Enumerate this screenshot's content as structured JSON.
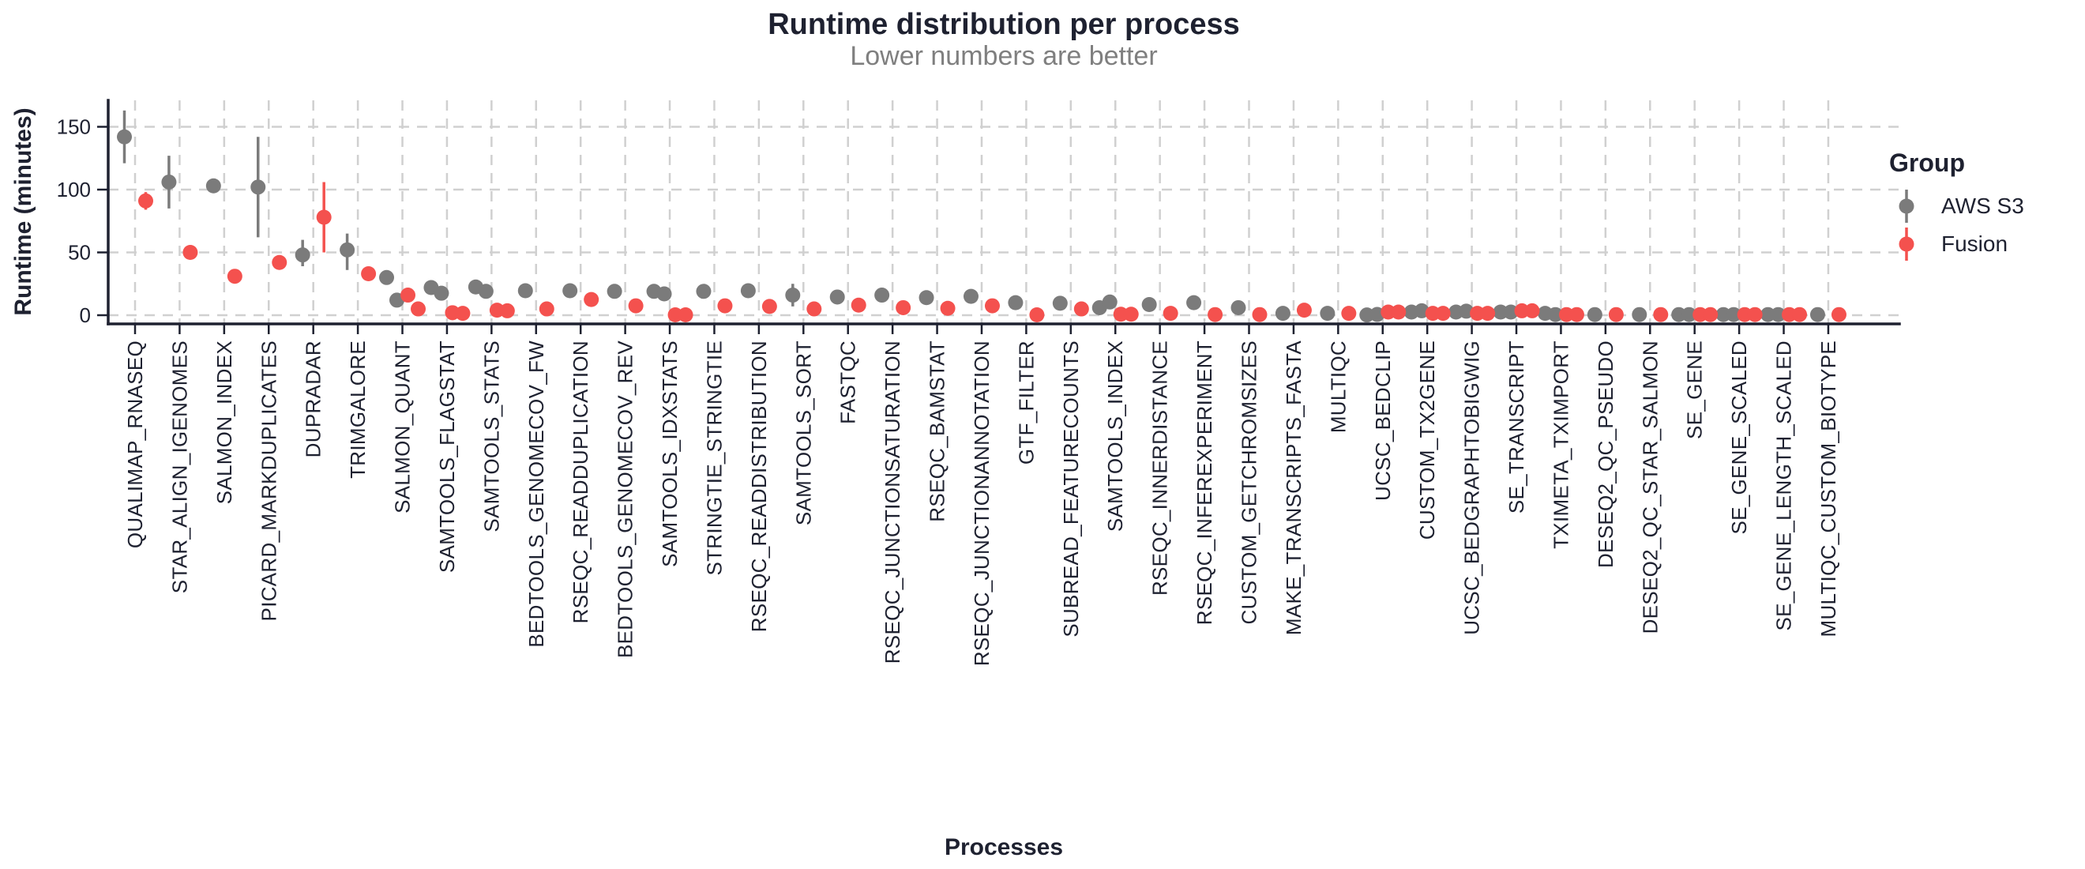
{
  "title": "Runtime distribution per process",
  "subtitle": "Lower numbers are better",
  "x_axis_title": "Processes",
  "y_axis_title": "Runtime (minutes)",
  "legend": {
    "title": "Group",
    "items": [
      {
        "label": "AWS S3",
        "color": "#7b7b7b"
      },
      {
        "label": "Fusion",
        "color": "#f4514e"
      }
    ]
  },
  "colors": {
    "aws_s3": "#7b7b7b",
    "fusion": "#f4514e",
    "axis_text": "#1e2130",
    "subtitle_gray": "#7f7f7f",
    "gridline": "#d0d0d0",
    "background": "#ffffff"
  },
  "chart_data": {
    "type": "scatter",
    "style": "dodged pointrange / jittered points per group",
    "grid": "dashed horizontal and vertical",
    "legend_position": "right",
    "y_ticks": [
      0,
      50,
      100,
      150
    ],
    "ylim": [
      -7,
      171
    ],
    "ylabel": "Runtime (minutes)",
    "xlabel": "Processes",
    "categories": [
      "QUALIMAP_RNASEQ",
      "STAR_ALIGN_IGENOMES",
      "SALMON_INDEX",
      "PICARD_MARKDUPLICATES",
      "DUPRADAR",
      "TRIMGALORE",
      "SALMON_QUANT",
      "SAMTOOLS_FLAGSTAT",
      "SAMTOOLS_STATS",
      "BEDTOOLS_GENOMECOV_FW",
      "RSEQC_READDUPLICATION",
      "BEDTOOLS_GENOMECOV_REV",
      "SAMTOOLS_IDXSTATS",
      "STRINGTIE_STRINGTIE",
      "RSEQC_READDISTRIBUTION",
      "SAMTOOLS_SORT",
      "FASTQC",
      "RSEQC_JUNCTIONSATURATION",
      "RSEQC_BAMSTAT",
      "RSEQC_JUNCTIONANNOTATION",
      "GTF_FILTER",
      "SUBREAD_FEATURECOUNTS",
      "SAMTOOLS_INDEX",
      "RSEQC_INNERDISTANCE",
      "RSEQC_INFEREXPERIMENT",
      "CUSTOM_GETCHROMSIZES",
      "MAKE_TRANSCRIPTS_FASTA",
      "MULTIQC",
      "UCSC_BEDCLIP",
      "CUSTOM_TX2GENE",
      "UCSC_BEDGRAPHTOBIGWIG",
      "SE_TRANSCRIPT",
      "TXIMETA_TXIMPORT",
      "DESEQ2_QC_PSEUDO",
      "DESEQ2_QC_STAR_SALMON",
      "SE_GENE",
      "SE_GENE_SCALED",
      "SE_GENE_LENGTH_SCALED",
      "MULTIQC_CUSTOM_BIOTYPE"
    ],
    "series": [
      {
        "name": "AWS S3",
        "color": "#7b7b7b",
        "data": [
          {
            "points": [
              142
            ],
            "range": [
              121,
              163
            ]
          },
          {
            "points": [
              106
            ],
            "range": [
              85,
              127
            ]
          },
          {
            "points": [
              103
            ],
            "range": null
          },
          {
            "points": [
              102
            ],
            "range": [
              62,
              142
            ]
          },
          {
            "points": [
              48
            ],
            "range": [
              39,
              60
            ]
          },
          {
            "points": [
              52
            ],
            "range": [
              36,
              65
            ]
          },
          {
            "points": [
              30,
              12
            ],
            "range": null
          },
          {
            "points": [
              22,
              17.5
            ],
            "range": null
          },
          {
            "points": [
              22.5,
              19
            ],
            "range": [
              16,
              26
            ]
          },
          {
            "points": [
              19.5
            ],
            "range": null
          },
          {
            "points": [
              19.5
            ],
            "range": null
          },
          {
            "points": [
              19
            ],
            "range": null
          },
          {
            "points": [
              19,
              17
            ],
            "range": null
          },
          {
            "points": [
              19
            ],
            "range": null
          },
          {
            "points": [
              19.5
            ],
            "range": null
          },
          {
            "points": [
              16
            ],
            "range": [
              7,
              25
            ]
          },
          {
            "points": [
              14.5
            ],
            "range": null
          },
          {
            "points": [
              16
            ],
            "range": null
          },
          {
            "points": [
              14
            ],
            "range": null
          },
          {
            "points": [
              15
            ],
            "range": null
          },
          {
            "points": [
              10
            ],
            "range": null
          },
          {
            "points": [
              9.5
            ],
            "range": null
          },
          {
            "points": [
              6,
              10.5
            ],
            "range": null
          },
          {
            "points": [
              8.5
            ],
            "range": null
          },
          {
            "points": [
              10
            ],
            "range": null
          },
          {
            "points": [
              6
            ],
            "range": null
          },
          {
            "points": [
              1.5
            ],
            "range": null
          },
          {
            "points": [
              1.5
            ],
            "range": null
          },
          {
            "points": [
              0.2,
              0.6
            ],
            "range": null
          },
          {
            "points": [
              2.5,
              3.5
            ],
            "range": null
          },
          {
            "points": [
              2.5,
              3.2
            ],
            "range": null
          },
          {
            "points": [
              2.5,
              2.5
            ],
            "range": null
          },
          {
            "points": [
              1.5,
              0.5
            ],
            "range": null
          },
          {
            "points": [
              0.5
            ],
            "range": null
          },
          {
            "points": [
              0.5
            ],
            "range": null
          },
          {
            "points": [
              0.5,
              0.5
            ],
            "range": null
          },
          {
            "points": [
              0.5,
              0.5
            ],
            "range": null
          },
          {
            "points": [
              0.5,
              0.5
            ],
            "range": null
          },
          {
            "points": [
              0.5
            ],
            "range": null
          }
        ]
      },
      {
        "name": "Fusion",
        "color": "#f4514e",
        "data": [
          {
            "points": [
              91
            ],
            "range": [
              84,
              98
            ]
          },
          {
            "points": [
              50
            ],
            "range": null
          },
          {
            "points": [
              31
            ],
            "range": null
          },
          {
            "points": [
              42
            ],
            "range": null
          },
          {
            "points": [
              78
            ],
            "range": [
              50,
              106
            ]
          },
          {
            "points": [
              33
            ],
            "range": null
          },
          {
            "points": [
              16,
              5
            ],
            "range": null
          },
          {
            "points": [
              2,
              1.5
            ],
            "range": null
          },
          {
            "points": [
              4,
              3.5
            ],
            "range": null
          },
          {
            "points": [
              5
            ],
            "range": null
          },
          {
            "points": [
              12.5
            ],
            "range": null
          },
          {
            "points": [
              7.5
            ],
            "range": null
          },
          {
            "points": [
              0.3,
              0.3
            ],
            "range": null
          },
          {
            "points": [
              7.5
            ],
            "range": null
          },
          {
            "points": [
              7
            ],
            "range": null
          },
          {
            "points": [
              5
            ],
            "range": null
          },
          {
            "points": [
              8
            ],
            "range": null
          },
          {
            "points": [
              6
            ],
            "range": null
          },
          {
            "points": [
              5.5
            ],
            "range": null
          },
          {
            "points": [
              7.5
            ],
            "range": null
          },
          {
            "points": [
              0.3
            ],
            "range": null
          },
          {
            "points": [
              5
            ],
            "range": null
          },
          {
            "points": [
              0.8,
              0.8
            ],
            "range": null
          },
          {
            "points": [
              1.5
            ],
            "range": null
          },
          {
            "points": [
              0.5
            ],
            "range": null
          },
          {
            "points": [
              0.5
            ],
            "range": null
          },
          {
            "points": [
              4
            ],
            "range": null
          },
          {
            "points": [
              1.5
            ],
            "range": null
          },
          {
            "points": [
              2.5,
              2.5
            ],
            "range": null
          },
          {
            "points": [
              1.5,
              1.5
            ],
            "range": null
          },
          {
            "points": [
              1.5,
              1.5
            ],
            "range": null
          },
          {
            "points": [
              3.5,
              3.5
            ],
            "range": null
          },
          {
            "points": [
              0.5,
              0.5
            ],
            "range": null
          },
          {
            "points": [
              0.5
            ],
            "range": null
          },
          {
            "points": [
              0.5
            ],
            "range": null
          },
          {
            "points": [
              0.5,
              0.5
            ],
            "range": null
          },
          {
            "points": [
              0.5,
              0.5
            ],
            "range": null
          },
          {
            "points": [
              0.5,
              0.5
            ],
            "range": null
          },
          {
            "points": [
              0.5
            ],
            "range": null
          }
        ]
      }
    ]
  }
}
